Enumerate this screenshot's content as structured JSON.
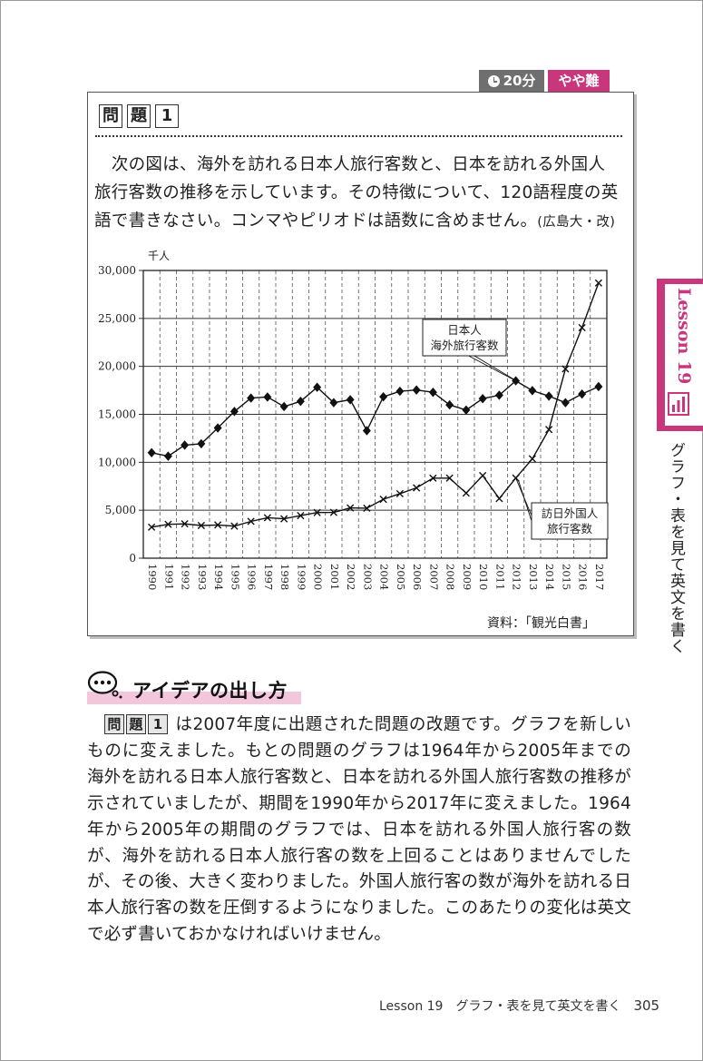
{
  "badges": {
    "time": "20分",
    "level": "やや難"
  },
  "problem": {
    "label_chars": [
      "問",
      "題",
      "1"
    ],
    "text": "次の図は、海外を訪れる日本人旅行客数と、日本を訪れる外国人旅行客数の推移を示しています。その特徴について、120語程度の英語で書きなさい。コンマやピリオドは語数に含めません。",
    "citation": "(広島大・改)"
  },
  "chart_data": {
    "type": "line",
    "yunit": "千人",
    "ylim": [
      0,
      30000
    ],
    "yticks": [
      "0",
      "5,000",
      "10,000",
      "15,000",
      "20,000",
      "25,000",
      "30,000"
    ],
    "categories": [
      "1990",
      "1991",
      "1992",
      "1993",
      "1994",
      "1995",
      "1996",
      "1997",
      "1998",
      "1999",
      "2000",
      "2001",
      "2002",
      "2003",
      "2004",
      "2005",
      "2006",
      "2007",
      "2008",
      "2009",
      "2010",
      "2011",
      "2012",
      "2013",
      "2014",
      "2015",
      "2016",
      "2017"
    ],
    "series": [
      {
        "name": "日本人海外旅行客数",
        "label_lines": [
          "日本人",
          "海外旅行客数"
        ],
        "marker": "diamond",
        "values": [
          10997,
          10634,
          11791,
          11934,
          13579,
          15298,
          16695,
          16803,
          15806,
          16358,
          17819,
          16216,
          16523,
          13296,
          16831,
          17404,
          17535,
          17295,
          15987,
          15446,
          16637,
          16994,
          18491,
          17473,
          16903,
          16214,
          17116,
          17889
        ]
      },
      {
        "name": "訪日外国人旅行客数",
        "label_lines": [
          "訪日外国人",
          "旅行客数"
        ],
        "marker": "x",
        "values": [
          3236,
          3533,
          3582,
          3410,
          3468,
          3345,
          3837,
          4218,
          4106,
          4438,
          4757,
          4772,
          5239,
          5212,
          6138,
          6728,
          7334,
          8347,
          8351,
          6790,
          8611,
          6219,
          8358,
          10364,
          13413,
          19737,
          24040,
          28691
        ]
      }
    ],
    "grid": true,
    "source": "資料：「観光白書」"
  },
  "side_tab": {
    "lesson": "Lesson 19",
    "subtitle": "グラフ・表を見て英文を書く"
  },
  "idea": {
    "title": "アイデアの出し方",
    "body_after_label": "は2007年度に出題された問題の改題です。グラフを新しいものに変えました。もとの問題のグラフは1964年から2005年までの海外を訪れる日本人旅行客数と、日本を訪れる外国人旅行客数の推移が示されていましたが、期間を1990年から2017年に変えました。1964年から2005年の期間のグラフでは、日本を訪れる外国人旅行客の数が、海外を訪れる日本人旅行客の数を上回ることはありませんでしたが、その後、大きく変わりました。外国人旅行客の数が海外を訪れる日本人旅行客の数を圧倒するようになりました。このあたりの変化は英文で必ず書いておかなければいけません。"
  },
  "footer": {
    "text": "Lesson 19　グラフ・表を見て英文を書く",
    "page": "305"
  }
}
